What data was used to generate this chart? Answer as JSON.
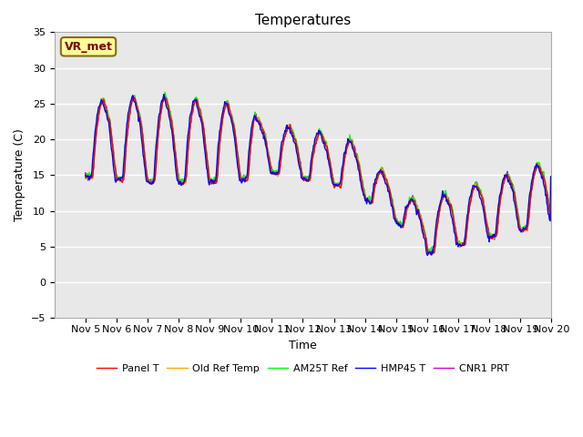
{
  "title": "Temperatures",
  "xlabel": "Time",
  "ylabel": "Temperature (C)",
  "ylim": [
    -5,
    35
  ],
  "xlim_days": [
    4.0,
    20.0
  ],
  "x_tick_positions": [
    5,
    6,
    7,
    8,
    9,
    10,
    11,
    12,
    13,
    14,
    15,
    16,
    17,
    18,
    19,
    20
  ],
  "x_tick_labels": [
    "Nov 5",
    "Nov 6",
    "Nov 7",
    "Nov 8",
    "Nov 9",
    "Nov 10",
    "Nov 11",
    "Nov 12",
    "Nov 13",
    "Nov 14",
    "Nov 15",
    "Nov 16",
    "Nov 17",
    "Nov 18",
    "Nov 19",
    "Nov 20"
  ],
  "y_ticks": [
    -5,
    0,
    5,
    10,
    15,
    20,
    25,
    30,
    35
  ],
  "annotation_text": "VR_met",
  "legend_entries": [
    "Panel T",
    "Old Ref Temp",
    "AM25T Ref",
    "HMP45 T",
    "CNR1 PRT"
  ],
  "line_colors": [
    "#FF0000",
    "#FFA500",
    "#00FF00",
    "#0000FF",
    "#CC00CC"
  ],
  "line_width": 1.0,
  "bg_color": "#E8E8E8",
  "grid_color": "#FFFFFF",
  "title_fontsize": 11,
  "label_fontsize": 9,
  "tick_fontsize": 8,
  "fig_width": 6.4,
  "fig_height": 4.8,
  "dpi": 100
}
